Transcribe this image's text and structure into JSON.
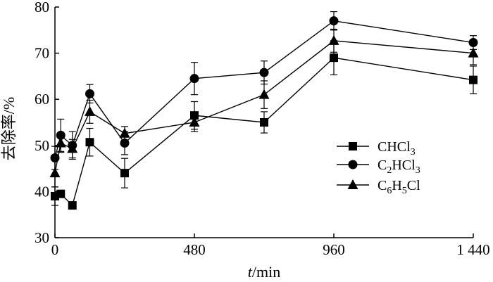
{
  "chart_data": {
    "type": "line",
    "xlabel_italic": "t",
    "xlabel_rest": "/min",
    "ylabel": "去除率/%",
    "xlim": [
      0,
      1440
    ],
    "ylim": [
      30,
      80
    ],
    "xticks": [
      0,
      480,
      960,
      1440
    ],
    "xtick_labels": [
      "0",
      "480",
      "960",
      "1 440"
    ],
    "yticks": [
      30,
      40,
      50,
      60,
      70,
      80
    ],
    "ytick_labels": [
      "30",
      "40",
      "50",
      "60",
      "70",
      "80"
    ],
    "legend_position": "right-middle",
    "series": [
      {
        "name_main": "CHCl",
        "name_sub": "3",
        "marker": "square",
        "x": [
          0,
          20,
          60,
          120,
          240,
          480,
          720,
          960,
          1440
        ],
        "y": [
          39.0,
          39.5,
          37.0,
          50.7,
          44.0,
          56.5,
          55.0,
          69.0,
          64.2
        ],
        "err": [
          2.0,
          0.0,
          0.0,
          3.0,
          3.2,
          3.0,
          2.3,
          3.7,
          3.0
        ]
      },
      {
        "name_main": "C",
        "name_sub": "2",
        "name_main2": "HCl",
        "name_sub2": "3",
        "marker": "circle",
        "x": [
          0,
          20,
          60,
          120,
          240,
          480,
          720,
          960,
          1440
        ],
        "y": [
          47.3,
          52.2,
          50.0,
          61.2,
          50.5,
          64.5,
          65.8,
          77.0,
          72.3
        ],
        "err": [
          2.5,
          3.5,
          3.0,
          2.0,
          2.5,
          3.5,
          2.5,
          2.0,
          1.5
        ]
      },
      {
        "name_main": "C",
        "name_sub": "6",
        "name_main2": "H",
        "name_sub2": "5",
        "name_main3": "Cl",
        "marker": "triangle",
        "x": [
          0,
          20,
          60,
          120,
          240,
          480,
          720,
          960,
          1440
        ],
        "y": [
          44.0,
          50.5,
          49.3,
          57.3,
          52.6,
          55.0,
          61.0,
          72.7,
          70.0
        ],
        "err": [
          3.0,
          2.0,
          2.0,
          2.5,
          1.5,
          2.0,
          3.0,
          2.5,
          2.5
        ]
      }
    ]
  }
}
